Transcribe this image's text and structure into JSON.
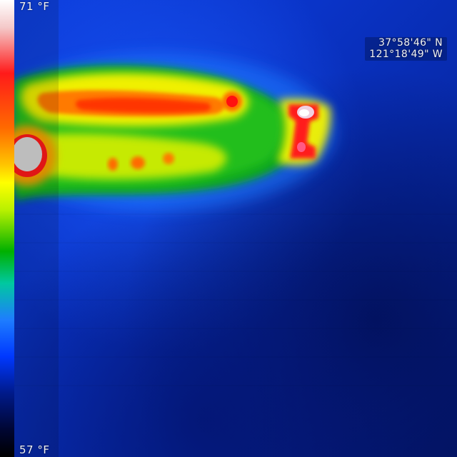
{
  "overlay": {
    "temp_max": "71 °F",
    "temp_min": "57 °F"
  },
  "gps": {
    "latitude": "37°58'46\" N",
    "longitude": "121°18'49\" W"
  },
  "colors": {
    "background_blue": "#0b2fb8",
    "dark_blue": "#03156a",
    "green": "#10b020",
    "yellow": "#f5f500",
    "orange": "#ff7a00",
    "red": "#ff1010",
    "white": "#f0f0f0"
  }
}
